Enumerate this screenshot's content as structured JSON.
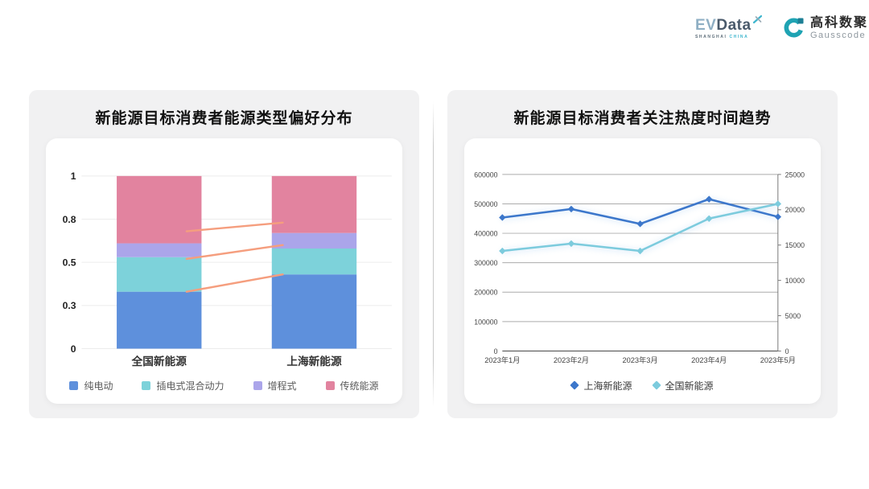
{
  "header": {
    "evdata": {
      "ev": "EV",
      "data": "Data",
      "sub_left": "SHANGHAI",
      "sub_right": "CHINA"
    },
    "gausscode": {
      "cn": "高科数聚",
      "en": "Gausscode"
    }
  },
  "colors": {
    "card_bg": "#F1F1F2",
    "panel_bg": "#FFFFFF",
    "connector": "#F59E7E",
    "grid_light": "#ECECEC",
    "grid_dark": "#ABABAB",
    "axis_line": "#555555",
    "right_axis_line": "#777777",
    "logo_teal": "#1FA3B3",
    "logo_teal_dark": "#1D7F95"
  },
  "chart_data": [
    {
      "type": "bar",
      "stacked": true,
      "title": "新能源目标消费者能源类型偏好分布",
      "categories": [
        "全国新能源",
        "上海新能源"
      ],
      "series": [
        {
          "name": "纯电动",
          "color": "#5E90DC",
          "values": [
            0.33,
            0.43
          ]
        },
        {
          "name": "插电式混合动力",
          "color": "#7DD2DA",
          "values": [
            0.2,
            0.15
          ]
        },
        {
          "name": "增程式",
          "color": "#ABA5EA",
          "values": [
            0.08,
            0.09
          ]
        },
        {
          "name": "传统能源",
          "color": "#E2839F",
          "values": [
            0.39,
            0.33
          ]
        }
      ],
      "ylim": [
        0,
        1
      ],
      "y_ticks": [
        {
          "label": "0",
          "value": 0
        },
        {
          "label": "0.3",
          "value": 0.25
        },
        {
          "label": "0.5",
          "value": 0.5
        },
        {
          "label": "0.8",
          "value": 0.75
        },
        {
          "label": "1",
          "value": 1
        }
      ],
      "connectors": [
        {
          "from": 0.33,
          "to": 0.43
        },
        {
          "from": 0.52,
          "to": 0.6
        },
        {
          "from": 0.68,
          "to": 0.73
        }
      ],
      "legend_position": "bottom",
      "grid": true
    },
    {
      "type": "line",
      "title": "新能源目标消费者关注热度时间趋势",
      "x": [
        "2023年1月",
        "2023年2月",
        "2023年3月",
        "2023年4月",
        "2023年5月"
      ],
      "series": [
        {
          "name": "上海新能源",
          "axis": "right",
          "color": "#3C77CB",
          "values": [
            18900,
            20100,
            18000,
            21500,
            19000
          ]
        },
        {
          "name": "全国新能源",
          "axis": "left",
          "color": "#7CCBDD",
          "values": [
            340000,
            365000,
            340000,
            450000,
            500000
          ]
        }
      ],
      "left_axis": {
        "min": 0,
        "max": 600000,
        "step": 100000,
        "tick_labels": [
          "0",
          "100000",
          "200000",
          "300000",
          "400000",
          "500000",
          "600000"
        ]
      },
      "right_axis": {
        "min": 0,
        "max": 25000,
        "step": 5000,
        "tick_labels": [
          "0",
          "5000",
          "10000",
          "15000",
          "20000",
          "25000"
        ]
      },
      "legend_position": "bottom",
      "grid": true
    }
  ]
}
